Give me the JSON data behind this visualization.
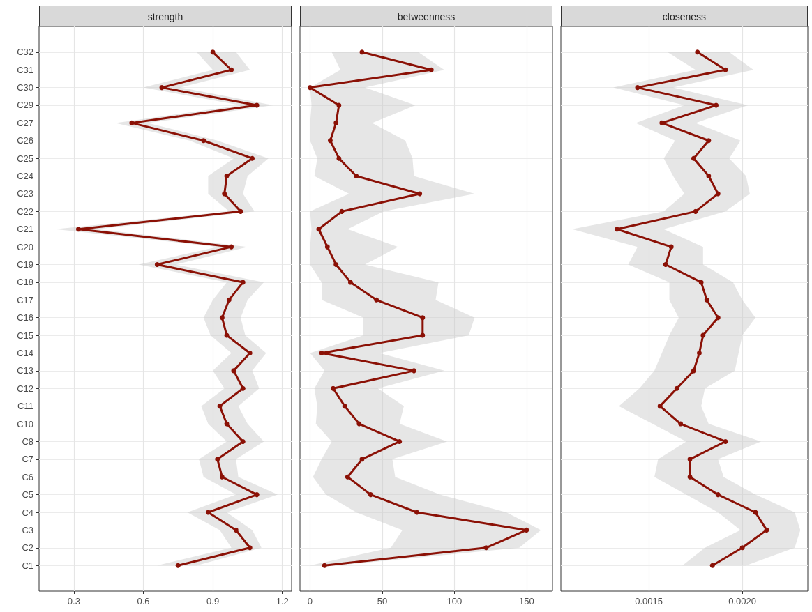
{
  "chart_data": [
    {
      "type": "line",
      "title": "strength",
      "orientation": "horizontal",
      "categories": [
        "C32",
        "C31",
        "C30",
        "C29",
        "C27",
        "C26",
        "C25",
        "C24",
        "C23",
        "C22",
        "C21",
        "C20",
        "C19",
        "C18",
        "C17",
        "C16",
        "C15",
        "C14",
        "C13",
        "C12",
        "C11",
        "C10",
        "C8",
        "C7",
        "C6",
        "C5",
        "C4",
        "C3",
        "C2",
        "C1"
      ],
      "series": [
        {
          "color": "#8b1106",
          "values": [
            0.9,
            0.98,
            0.68,
            1.09,
            0.55,
            0.86,
            1.07,
            0.96,
            0.95,
            1.02,
            0.32,
            0.98,
            0.66,
            1.03,
            0.97,
            0.94,
            0.96,
            1.06,
            0.99,
            1.03,
            0.93,
            0.96,
            1.03,
            0.92,
            0.94,
            1.09,
            0.88,
            1.0,
            1.06,
            0.75
          ],
          "lower": [
            0.83,
            0.9,
            0.6,
            1.02,
            0.48,
            0.8,
            0.99,
            0.88,
            0.88,
            0.97,
            0.22,
            0.92,
            0.58,
            0.96,
            0.9,
            0.86,
            0.89,
            0.98,
            0.9,
            0.95,
            0.85,
            0.88,
            0.96,
            0.84,
            0.86,
            1.0,
            0.79,
            0.93,
            0.98,
            0.66
          ],
          "upper": [
            1.0,
            1.06,
            0.76,
            1.16,
            0.62,
            0.92,
            1.14,
            1.05,
            1.03,
            1.08,
            0.4,
            1.05,
            0.74,
            1.12,
            1.05,
            1.02,
            1.04,
            1.13,
            1.07,
            1.1,
            1.01,
            1.05,
            1.12,
            1.0,
            1.01,
            1.18,
            0.96,
            1.07,
            1.11,
            0.83
          ]
        }
      ],
      "xlim": [
        0.15,
        1.24
      ],
      "xticks": [
        0.3,
        0.6,
        0.9,
        1.2
      ],
      "grid": true,
      "marker": "circle",
      "line_style": "solid"
    },
    {
      "type": "line",
      "title": "betweenness",
      "orientation": "horizontal",
      "categories": [
        null,
        null,
        null,
        null,
        null,
        null,
        null,
        null,
        null,
        null,
        null,
        null,
        null,
        null,
        null,
        null,
        null,
        null,
        null,
        null,
        null,
        null,
        null,
        null,
        null,
        null,
        null,
        null,
        null,
        null
      ],
      "series": [
        {
          "color": "#8b1106",
          "values": [
            36,
            84,
            0,
            20,
            18,
            14,
            20,
            32,
            76,
            22,
            6,
            12,
            18,
            28,
            46,
            78,
            78,
            8,
            72,
            16,
            24,
            34,
            62,
            36,
            26,
            42,
            74,
            150,
            122,
            10
          ],
          "lower": [
            15,
            21,
            0,
            1,
            0,
            0,
            5,
            3,
            27,
            0,
            1,
            0,
            0,
            8,
            8,
            37,
            37,
            0,
            10,
            3,
            5,
            4,
            15,
            8,
            2,
            11,
            32,
            64,
            56,
            0
          ],
          "upper": [
            75,
            93,
            38,
            73,
            43,
            66,
            71,
            72,
            114,
            51,
            26,
            61,
            38,
            89,
            87,
            114,
            110,
            48,
            93,
            47,
            65,
            62,
            95,
            57,
            59,
            90,
            136,
            160,
            145,
            18
          ]
        }
      ],
      "xlim": [
        -7,
        168
      ],
      "xticks": [
        0,
        50,
        100,
        150
      ],
      "grid": true,
      "marker": "circle",
      "line_style": "solid",
      "tick_labels": "x"
    },
    {
      "type": "line",
      "title": "closeness",
      "orientation": "horizontal",
      "categories": [
        null,
        null,
        null,
        null,
        null,
        null,
        null,
        null,
        null,
        null,
        null,
        null,
        null,
        null,
        null,
        null,
        null,
        null,
        null,
        null,
        null,
        null,
        null,
        null,
        null,
        null,
        null,
        null,
        null,
        null
      ],
      "series": [
        {
          "color": "#8b1106",
          "values": [
            0.00176,
            0.00191,
            0.00144,
            0.00186,
            0.00157,
            0.00182,
            0.00174,
            0.00182,
            0.00187,
            0.00175,
            0.00133,
            0.00162,
            0.00159,
            0.00178,
            0.00181,
            0.00187,
            0.00179,
            0.00177,
            0.00174,
            0.00165,
            0.00156,
            0.00167,
            0.00191,
            0.00172,
            0.00172,
            0.00187,
            0.00207,
            0.00213,
            0.002,
            0.00184
          ],
          "lower": [
            0.0016,
            0.00175,
            0.00131,
            0.00169,
            0.00143,
            0.00164,
            0.00158,
            0.00163,
            0.00169,
            0.00158,
            0.00109,
            0.00144,
            0.00139,
            0.00161,
            0.00161,
            0.00166,
            0.00161,
            0.00157,
            0.00153,
            0.00145,
            0.00134,
            0.00152,
            0.0017,
            0.00155,
            0.00153,
            0.0017,
            0.00187,
            0.00199,
            0.0018,
            0.00168
          ],
          "upper": [
            0.00193,
            0.00206,
            0.00163,
            0.00203,
            0.00175,
            0.00199,
            0.00193,
            0.00202,
            0.00204,
            0.00191,
            0.00158,
            0.00179,
            0.00179,
            0.00195,
            0.002,
            0.00207,
            0.002,
            0.00198,
            0.00196,
            0.0018,
            0.00178,
            0.00182,
            0.0021,
            0.00187,
            0.0019,
            0.00207,
            0.00228,
            0.00231,
            0.00228,
            0.00202
          ]
        }
      ],
      "xlim": [
        0.00103,
        0.00235
      ],
      "xticks": [
        {
          "value": 0.0015,
          "label": "0.0015"
        },
        {
          "value": 0.002,
          "label": "0.0020"
        }
      ],
      "grid": true,
      "marker": "circle",
      "line_style": "solid",
      "tick_labels": "x"
    }
  ]
}
